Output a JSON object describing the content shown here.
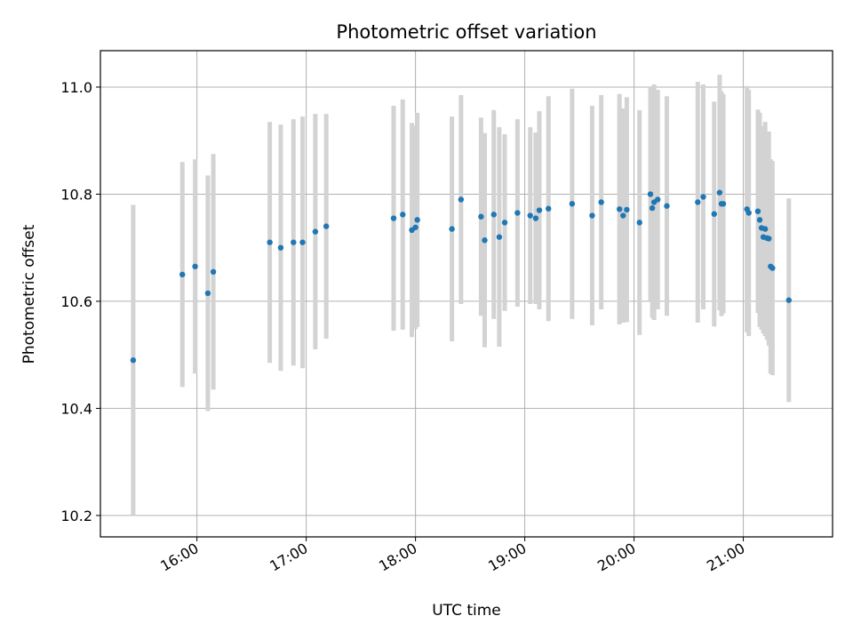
{
  "chart_data": {
    "type": "scatter",
    "title": "Photometric offset variation",
    "xlabel": "UTC time",
    "ylabel": "Photometric offset",
    "xlim": [
      "15:07",
      "21:49"
    ],
    "ylim": [
      10.16,
      11.068
    ],
    "x_ticks": [
      "16:00",
      "17:00",
      "18:00",
      "19:00",
      "20:00",
      "21:00"
    ],
    "y_ticks": [
      10.2,
      10.4,
      10.6,
      10.8,
      11.0
    ],
    "y_tick_labels": [
      "10.2",
      "10.4",
      "10.6",
      "10.8",
      "11.0"
    ],
    "grid": true,
    "colors": {
      "point": "#1f77b4",
      "errorbar": "#d3d3d3",
      "grid": "#b0b0b0"
    },
    "series": [
      {
        "x": [
          "15:25",
          "15:52",
          "15:59",
          "16:06",
          "16:09",
          "16:40",
          "16:46",
          "16:53",
          "16:58",
          "17:05",
          "17:11",
          "17:48",
          "17:53",
          "17:58",
          "18:00",
          "18:01",
          "18:20",
          "18:25",
          "18:36",
          "18:38",
          "18:43",
          "18:46",
          "18:49",
          "18:56",
          "19:03",
          "19:06",
          "19:08",
          "19:13",
          "19:26",
          "19:37",
          "19:42",
          "19:52",
          "19:54",
          "19:56",
          "20:03",
          "20:09",
          "20:10",
          "20:11",
          "20:13",
          "20:18",
          "20:35",
          "20:38",
          "20:44",
          "20:47",
          "20:48",
          "20:49",
          "21:02",
          "21:03",
          "21:08",
          "21:09",
          "21:10",
          "21:11",
          "21:12",
          "21:13",
          "21:14",
          "21:15",
          "21:16",
          "21:25"
        ],
        "y": [
          10.49,
          10.65,
          10.665,
          10.615,
          10.655,
          10.71,
          10.7,
          10.71,
          10.71,
          10.73,
          10.74,
          10.755,
          10.762,
          10.733,
          10.738,
          10.752,
          10.735,
          10.79,
          10.758,
          10.714,
          10.762,
          10.72,
          10.747,
          10.765,
          10.76,
          10.755,
          10.77,
          10.773,
          10.782,
          10.76,
          10.785,
          10.772,
          10.76,
          10.771,
          10.747,
          10.8,
          10.774,
          10.785,
          10.79,
          10.778,
          10.785,
          10.795,
          10.763,
          10.803,
          10.782,
          10.782,
          10.772,
          10.765,
          10.768,
          10.752,
          10.737,
          10.72,
          10.735,
          10.718,
          10.717,
          10.665,
          10.662,
          10.602
        ],
        "yerr": [
          0.29,
          0.21,
          0.2,
          0.22,
          0.22,
          0.225,
          0.23,
          0.23,
          0.235,
          0.22,
          0.21,
          0.21,
          0.215,
          0.2,
          0.19,
          0.2,
          0.21,
          0.195,
          0.185,
          0.2,
          0.195,
          0.205,
          0.165,
          0.175,
          0.165,
          0.16,
          0.185,
          0.21,
          0.215,
          0.205,
          0.2,
          0.215,
          0.2,
          0.21,
          0.21,
          0.2,
          0.205,
          0.22,
          0.205,
          0.205,
          0.225,
          0.21,
          0.21,
          0.22,
          0.21,
          0.205,
          0.23,
          0.23,
          0.19,
          0.2,
          0.19,
          0.18,
          0.2,
          0.19,
          0.2,
          0.2,
          0.2,
          0.19
        ]
      }
    ]
  }
}
